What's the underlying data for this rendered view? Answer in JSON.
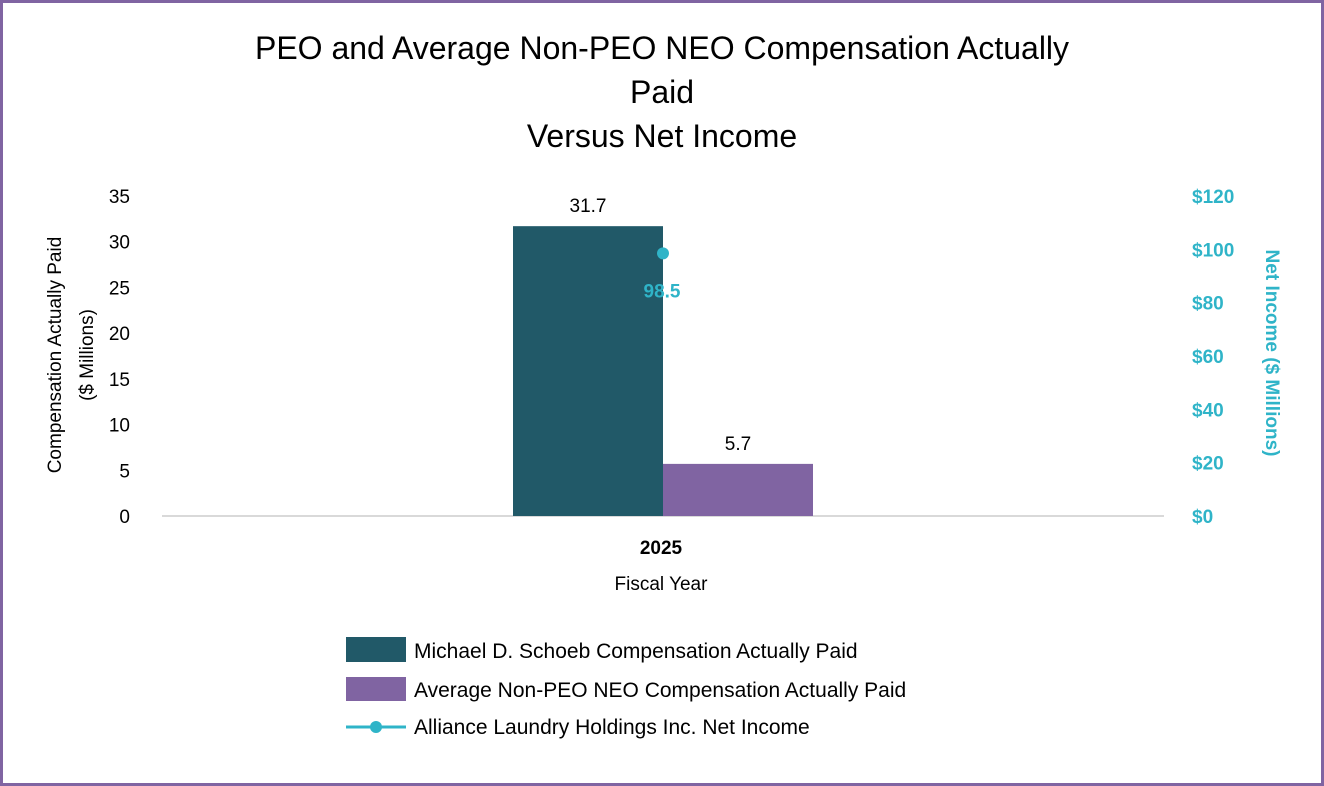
{
  "chart_data": {
    "type": "bar",
    "title_lines": [
      "PEO and Average Non-PEO NEO Compensation Actually",
      "Paid",
      "Versus Net Income"
    ],
    "categories": [
      "2025"
    ],
    "xlabel": "Fiscal Year",
    "ylabel_lines": [
      "Compensation Actually Paid",
      "($ Millions)"
    ],
    "y2label": "Net Income ($ Millions)",
    "ylim": [
      0,
      35
    ],
    "y_ticks": [
      "0",
      "5",
      "10",
      "15",
      "20",
      "25",
      "30",
      "35"
    ],
    "y2lim": [
      0,
      120
    ],
    "y2_ticks": [
      "$0",
      "$20",
      "$40",
      "$60",
      "$80",
      "$100",
      "$120"
    ],
    "series": [
      {
        "name": "Michael D. Schoeb Compensation Actually Paid",
        "kind": "bar",
        "color": "#215968",
        "values": [
          31.7
        ],
        "labels": [
          "31.7"
        ]
      },
      {
        "name": "Average Non-PEO NEO Compensation Actually Paid",
        "kind": "bar",
        "color": "#8064a2",
        "values": [
          5.7
        ],
        "labels": [
          "5.7"
        ]
      },
      {
        "name": "Alliance Laundry Holdings Inc. Net Income",
        "kind": "line",
        "axis": "right",
        "color": "#2fb4c8",
        "values": [
          98.5
        ],
        "labels": [
          "98.5"
        ]
      }
    ]
  }
}
